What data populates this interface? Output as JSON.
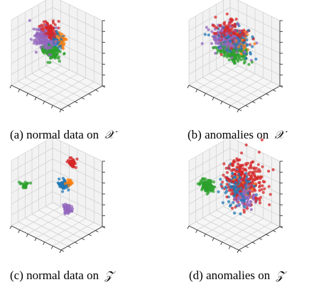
{
  "figure": {
    "panels": [
      {
        "caption_prefix": "(a) normal data on",
        "caption_symbol": "𝒳"
      },
      {
        "caption_prefix": "(b) anomalies on",
        "caption_symbol": "𝒳"
      },
      {
        "caption_prefix": "(c) normal data on",
        "caption_symbol": "𝒵"
      },
      {
        "caption_prefix": "(d) anomalies on",
        "caption_symbol": "𝒵"
      }
    ]
  },
  "colors": {
    "blue": "#1f77b4",
    "orange": "#ff7f0e",
    "green": "#2ca02c",
    "red": "#d62728",
    "purple": "#9467bd",
    "grid": "#cfcfcf",
    "pane": "#f6f6f6"
  },
  "chart_data": [
    {
      "type": "scatter",
      "projection": "3d",
      "grid": true,
      "clusters": [
        {
          "color": "red",
          "center": [
            0.38,
            0.44,
            0.82
          ],
          "spread": [
            0.07,
            0.05,
            0.06
          ],
          "n": 90
        },
        {
          "color": "purple",
          "center": [
            0.33,
            0.4,
            0.68
          ],
          "spread": [
            0.09,
            0.06,
            0.08
          ],
          "n": 140
        },
        {
          "color": "blue",
          "center": [
            0.47,
            0.5,
            0.68
          ],
          "spread": [
            0.06,
            0.05,
            0.06
          ],
          "n": 60
        },
        {
          "color": "orange",
          "center": [
            0.56,
            0.54,
            0.7
          ],
          "spread": [
            0.04,
            0.04,
            0.04
          ],
          "n": 40
        },
        {
          "color": "green",
          "center": [
            0.45,
            0.42,
            0.54
          ],
          "spread": [
            0.08,
            0.06,
            0.05
          ],
          "n": 120
        }
      ]
    },
    {
      "type": "scatter",
      "projection": "3d",
      "grid": true,
      "clusters": [
        {
          "color": "red",
          "center": [
            0.42,
            0.48,
            0.78
          ],
          "spread": [
            0.14,
            0.08,
            0.08
          ],
          "n": 130
        },
        {
          "color": "blue",
          "center": [
            0.5,
            0.5,
            0.7
          ],
          "spread": [
            0.15,
            0.09,
            0.08
          ],
          "n": 120
        },
        {
          "color": "purple",
          "center": [
            0.4,
            0.45,
            0.68
          ],
          "spread": [
            0.16,
            0.09,
            0.09
          ],
          "n": 200
        },
        {
          "color": "orange",
          "center": [
            0.58,
            0.52,
            0.66
          ],
          "spread": [
            0.1,
            0.07,
            0.07
          ],
          "n": 70
        },
        {
          "color": "green",
          "center": [
            0.5,
            0.42,
            0.55
          ],
          "spread": [
            0.14,
            0.07,
            0.06
          ],
          "n": 150
        }
      ]
    },
    {
      "type": "scatter",
      "projection": "3d",
      "grid": true,
      "clusters": [
        {
          "color": "red",
          "center": [
            0.6,
            0.75,
            0.92
          ],
          "spread": [
            0.03,
            0.03,
            0.03
          ],
          "n": 60
        },
        {
          "color": "blue",
          "center": [
            0.6,
            0.55,
            0.66
          ],
          "spread": [
            0.04,
            0.03,
            0.03
          ],
          "n": 55
        },
        {
          "color": "orange",
          "center": [
            0.68,
            0.58,
            0.7
          ],
          "spread": [
            0.02,
            0.02,
            0.02
          ],
          "n": 20
        },
        {
          "color": "green",
          "center": [
            0.1,
            0.2,
            0.6
          ],
          "spread": [
            0.03,
            0.03,
            0.02
          ],
          "n": 25
        },
        {
          "color": "purple",
          "center": [
            0.78,
            0.42,
            0.4
          ],
          "spread": [
            0.03,
            0.03,
            0.03
          ],
          "n": 55
        }
      ]
    },
    {
      "type": "scatter",
      "projection": "3d",
      "grid": true,
      "clusters": [
        {
          "color": "red",
          "center": [
            0.62,
            0.6,
            0.7
          ],
          "spread": [
            0.18,
            0.15,
            0.18
          ],
          "n": 260
        },
        {
          "color": "blue",
          "center": [
            0.55,
            0.52,
            0.62
          ],
          "spread": [
            0.13,
            0.1,
            0.1
          ],
          "n": 150
        },
        {
          "color": "orange",
          "center": [
            0.62,
            0.55,
            0.6
          ],
          "spread": [
            0.08,
            0.06,
            0.06
          ],
          "n": 60
        },
        {
          "color": "green",
          "center": [
            0.15,
            0.25,
            0.58
          ],
          "spread": [
            0.06,
            0.06,
            0.05
          ],
          "n": 100
        },
        {
          "color": "purple",
          "center": [
            0.72,
            0.48,
            0.55
          ],
          "spread": [
            0.09,
            0.07,
            0.08
          ],
          "n": 90
        }
      ]
    }
  ]
}
